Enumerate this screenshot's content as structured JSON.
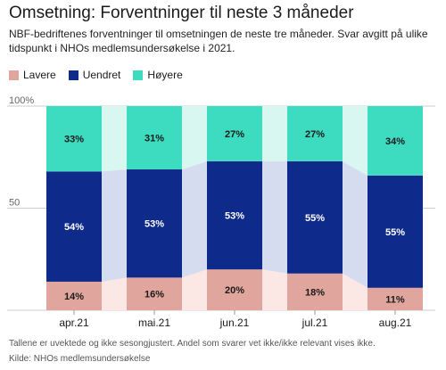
{
  "header": {
    "title": "Omsetning: Forventninger til neste 3 måneder",
    "subtitle": "NBF-bedriftenes forventninger til omsetningen de neste tre måneder. Svar avgitt på ulike tidspunkt i NHOs medlemsundersøkelse i 2021."
  },
  "footer": {
    "note": "Tallene er uvektede og ikke sesongjustert. Andel som svarer vet ikke/ikke relevant vises ikke.",
    "source": "Kilde: NHOs medlemsundersøkelse"
  },
  "colors": {
    "lavere": "#e0a59c",
    "uendret": "#0e2a8a",
    "hoyere": "#3ddcc0",
    "lavere_band": "#fbe7e4",
    "uendret_band": "#d5dcf0",
    "hoyere_band": "#d9f7f1",
    "grid": "#cccccc"
  },
  "chart_data": {
    "type": "bar",
    "stacked": true,
    "categories": [
      "apr.21",
      "mai.21",
      "jun.21",
      "jul.21",
      "aug.21"
    ],
    "series": [
      {
        "name": "Lavere",
        "values": [
          14,
          16,
          20,
          18,
          11
        ],
        "labels": [
          "14%",
          "16%",
          "20%",
          "18%",
          "11%"
        ]
      },
      {
        "name": "Uendret",
        "values": [
          54,
          53,
          53,
          55,
          55
        ],
        "labels": [
          "54%",
          "53%",
          "53%",
          "55%",
          "55%"
        ]
      },
      {
        "name": "Høyere",
        "values": [
          33,
          31,
          27,
          27,
          34
        ],
        "labels": [
          "33%",
          "31%",
          "27%",
          "27%",
          "34%"
        ]
      }
    ],
    "ylim": [
      0,
      100
    ],
    "yticks": [
      {
        "value": 0,
        "label": ""
      },
      {
        "value": 50,
        "label": "50"
      },
      {
        "value": 100,
        "label": "100%"
      }
    ],
    "grid": true,
    "legend_position": "top-left"
  }
}
